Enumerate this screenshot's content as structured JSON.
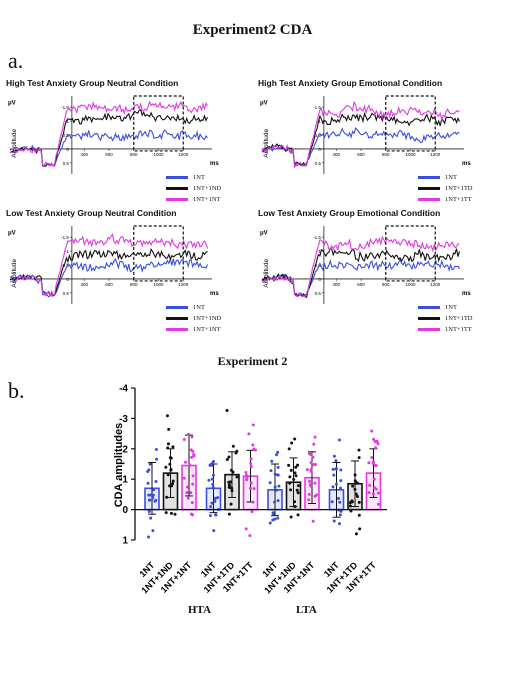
{
  "page": {
    "title": "Experiment2 CDA"
  },
  "panel_a_letter": "a.",
  "panel_b_letter": "b.",
  "chart_data": [
    {
      "type": "line",
      "title": "High Test Anxiety Group Neutral Condition",
      "ylabel_unit": "μV",
      "ylabel": "Amplitude",
      "xlabel": "ms",
      "x_ticks": [
        400,
        600,
        800,
        1000,
        1200
      ],
      "y_ticks": [
        "-1.5",
        "-1",
        "-0.5",
        "0",
        "0.5"
      ],
      "ylim": [
        0.9,
        -1.9
      ],
      "xlim": [
        -200,
        1400
      ],
      "highlight_window": [
        800,
        1200
      ],
      "series": [
        {
          "name": "1NT",
          "color": "#3a4fe0",
          "level": -0.45,
          "seed": 11
        },
        {
          "name": "1NT+1ND",
          "color": "#111111",
          "level": -1.1,
          "seed": 23
        },
        {
          "name": "1NT+1NT",
          "color": "#e03ae0",
          "level": -1.45,
          "seed": 37
        }
      ]
    },
    {
      "type": "line",
      "title": "High Test Anxiety Group Emotional Condition",
      "ylabel_unit": "μV",
      "ylabel": "Amplitude",
      "xlabel": "ms",
      "x_ticks": [
        400,
        600,
        800,
        1000,
        1200
      ],
      "y_ticks": [
        "-1.5",
        "-1",
        "-0.5",
        "0",
        "0.5"
      ],
      "ylim": [
        0.9,
        -1.9
      ],
      "xlim": [
        -200,
        1400
      ],
      "highlight_window": [
        800,
        1200
      ],
      "series": [
        {
          "name": "1NT",
          "color": "#3a4fe0",
          "level": -0.55,
          "seed": 41
        },
        {
          "name": "1NT+1TD",
          "color": "#111111",
          "level": -1.05,
          "seed": 53
        },
        {
          "name": "1NT+1TT",
          "color": "#e03ae0",
          "level": -1.3,
          "seed": 67
        }
      ]
    },
    {
      "type": "line",
      "title": "Low Test Anxiety Group Neutral Condition",
      "ylabel_unit": "μV",
      "ylabel": "Amplitude",
      "xlabel": "ms",
      "x_ticks": [
        400,
        600,
        800,
        1000,
        1200
      ],
      "y_ticks": [
        "-1.5",
        "-1",
        "-0.5",
        "0",
        "0.5"
      ],
      "ylim": [
        0.9,
        -1.9
      ],
      "xlim": [
        -200,
        1400
      ],
      "highlight_window": [
        800,
        1200
      ],
      "series": [
        {
          "name": "1NT",
          "color": "#3a4fe0",
          "level": -0.45,
          "seed": 71
        },
        {
          "name": "1NT+1ND",
          "color": "#111111",
          "level": -0.85,
          "seed": 83
        },
        {
          "name": "1NT+1NT",
          "color": "#e03ae0",
          "level": -1.3,
          "seed": 97
        }
      ]
    },
    {
      "type": "line",
      "title": "Low Test Anxiety Group Emotional Condition",
      "ylabel_unit": "μV",
      "ylabel": "Amplitude",
      "xlabel": "ms",
      "x_ticks": [
        400,
        600,
        800,
        1000,
        1200
      ],
      "y_ticks": [
        "-1.5",
        "-1",
        "-0.5",
        "0",
        "0.5"
      ],
      "ylim": [
        0.9,
        -1.9
      ],
      "xlim": [
        -200,
        1400
      ],
      "highlight_window": [
        800,
        1200
      ],
      "series": [
        {
          "name": "1NT",
          "color": "#3a4fe0",
          "level": -0.5,
          "seed": 101
        },
        {
          "name": "1NT+1TD",
          "color": "#111111",
          "level": -0.9,
          "seed": 113
        },
        {
          "name": "1NT+1TT",
          "color": "#e03ae0",
          "level": -1.25,
          "seed": 127
        }
      ]
    },
    {
      "type": "bar",
      "title": "Experiment 2",
      "ylabel": "CDA amplitudes",
      "ylim": [
        1,
        -4
      ],
      "y_ticks": [
        "-4",
        "-3",
        "-2",
        "-1",
        "0",
        "1"
      ],
      "categories": [
        "1NT",
        "1NT+1ND",
        "1NT+1NT",
        "1NT",
        "1NT+1TD",
        "1NT+1TT",
        "1NT",
        "1NT+1ND",
        "1NT+1NT",
        "1NT",
        "1NT+1TD",
        "1NT+1TT"
      ],
      "colors": [
        "#3a4fe0",
        "#111111",
        "#e03ae0",
        "#3a4fe0",
        "#111111",
        "#e03ae0",
        "#3a4fe0",
        "#111111",
        "#e03ae0",
        "#3a4fe0",
        "#111111",
        "#e03ae0"
      ],
      "values": [
        -0.7,
        -1.2,
        -1.45,
        -0.7,
        -1.15,
        -1.1,
        -0.65,
        -0.9,
        -1.05,
        -0.65,
        -0.85,
        -1.2
      ],
      "errors": [
        0.85,
        0.8,
        1.0,
        0.8,
        0.75,
        0.85,
        0.85,
        0.8,
        0.85,
        0.9,
        0.75,
        0.8
      ],
      "groups": [
        {
          "label": "HTA",
          "span": [
            0,
            5
          ]
        },
        {
          "label": "LTA",
          "span": [
            6,
            11
          ]
        }
      ]
    }
  ]
}
